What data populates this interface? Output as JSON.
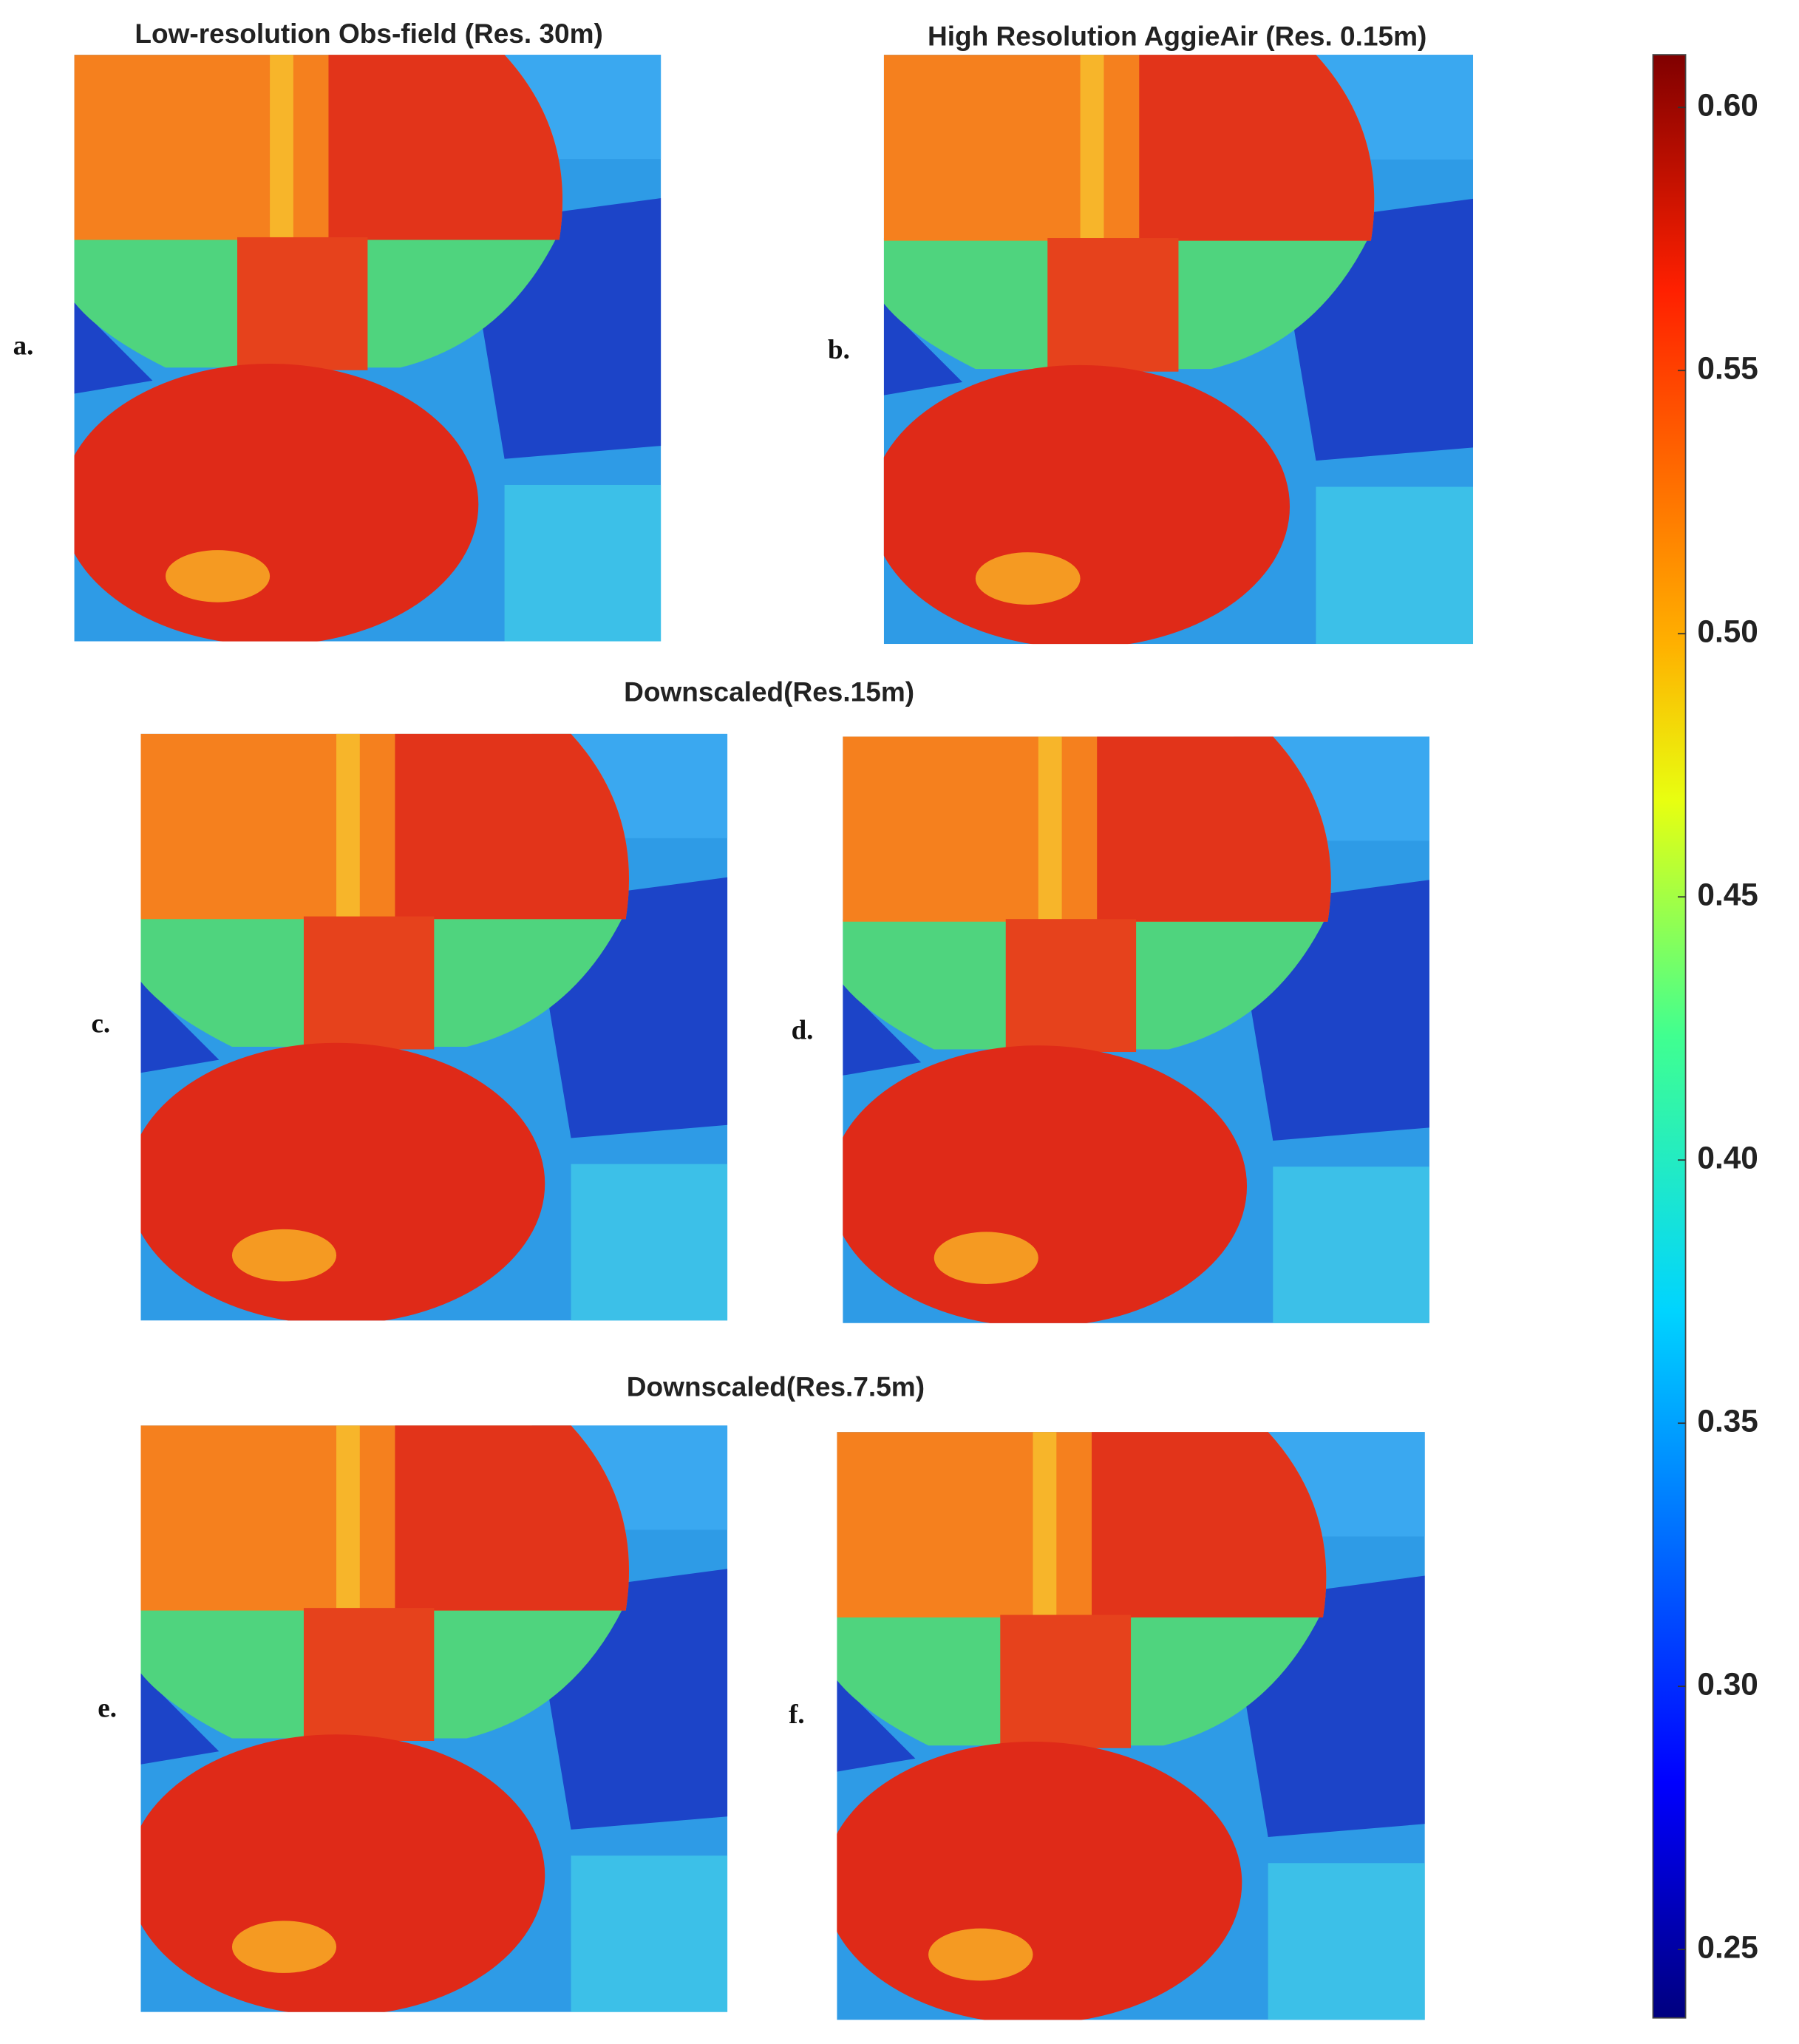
{
  "panels": [
    {
      "label": "a.",
      "title": "Low-resolution Obs-field (Res. 30m)"
    },
    {
      "label": "b.",
      "title": "High Resolution AggieAir (Res. 0.15m)"
    },
    {
      "label": "c."
    },
    {
      "label": "d."
    },
    {
      "label": "e."
    },
    {
      "label": "f."
    }
  ],
  "section_titles": [
    "Downscaled(Res.15m)",
    "Downscaled(Res.7.5m)"
  ],
  "colorbar": {
    "lim": [
      0.237,
      0.61
    ],
    "ticks": [
      {
        "value": 0.25,
        "label": "0.25"
      },
      {
        "value": 0.3,
        "label": "0.30"
      },
      {
        "value": 0.35,
        "label": "0.35"
      },
      {
        "value": 0.4,
        "label": "0.40"
      },
      {
        "value": 0.45,
        "label": "0.45"
      },
      {
        "value": 0.5,
        "label": "0.50"
      },
      {
        "value": 0.55,
        "label": "0.55"
      },
      {
        "value": 0.6,
        "label": "0.60"
      }
    ]
  }
}
